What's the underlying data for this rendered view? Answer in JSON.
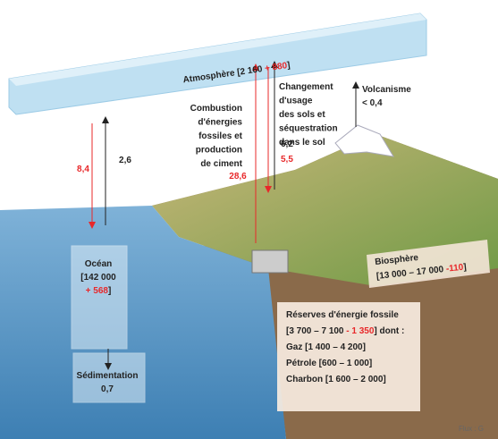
{
  "atmosphere": {
    "label": "Atmosphère [2 160 ",
    "change": "+ 880",
    "close": "]"
  },
  "ocean_to_air": {
    "value": "8,4"
  },
  "air_to_ocean": {
    "value": "2,6"
  },
  "combustion": {
    "lines": [
      "Combustion",
      "d'énergies",
      "fossiles et",
      "production",
      "de ciment"
    ],
    "value": "28,6"
  },
  "land_use": {
    "lines": [
      "Changement",
      "d'usage",
      "des sols et",
      "séquestration",
      "dans le sol"
    ],
    "value_black": "6,2",
    "value_red": "5,5"
  },
  "volcanism": {
    "label": "Volcanisme",
    "value": "< 0,4"
  },
  "ocean": {
    "label": "Océan",
    "stock": "[142 000",
    "change": "+ 568",
    "close": "]"
  },
  "sedimentation": {
    "label": "Sédimentation",
    "value": "0,7"
  },
  "biosphere": {
    "label": "Biosphère",
    "stock": "[13 000 – 17 000 ",
    "change": "-110",
    "close": "]"
  },
  "fossil": {
    "label": "Réserves d'énergie fossile",
    "stock": "[3 700 – 7 100 ",
    "change": "- 1 350",
    "close": "] dont :",
    "items": [
      "Gaz [1 400 – 4 200]",
      "Pétrole [600 – 1 000]",
      "Charbon [1 600 – 2 000]"
    ]
  },
  "footer": "Flux : G"
}
